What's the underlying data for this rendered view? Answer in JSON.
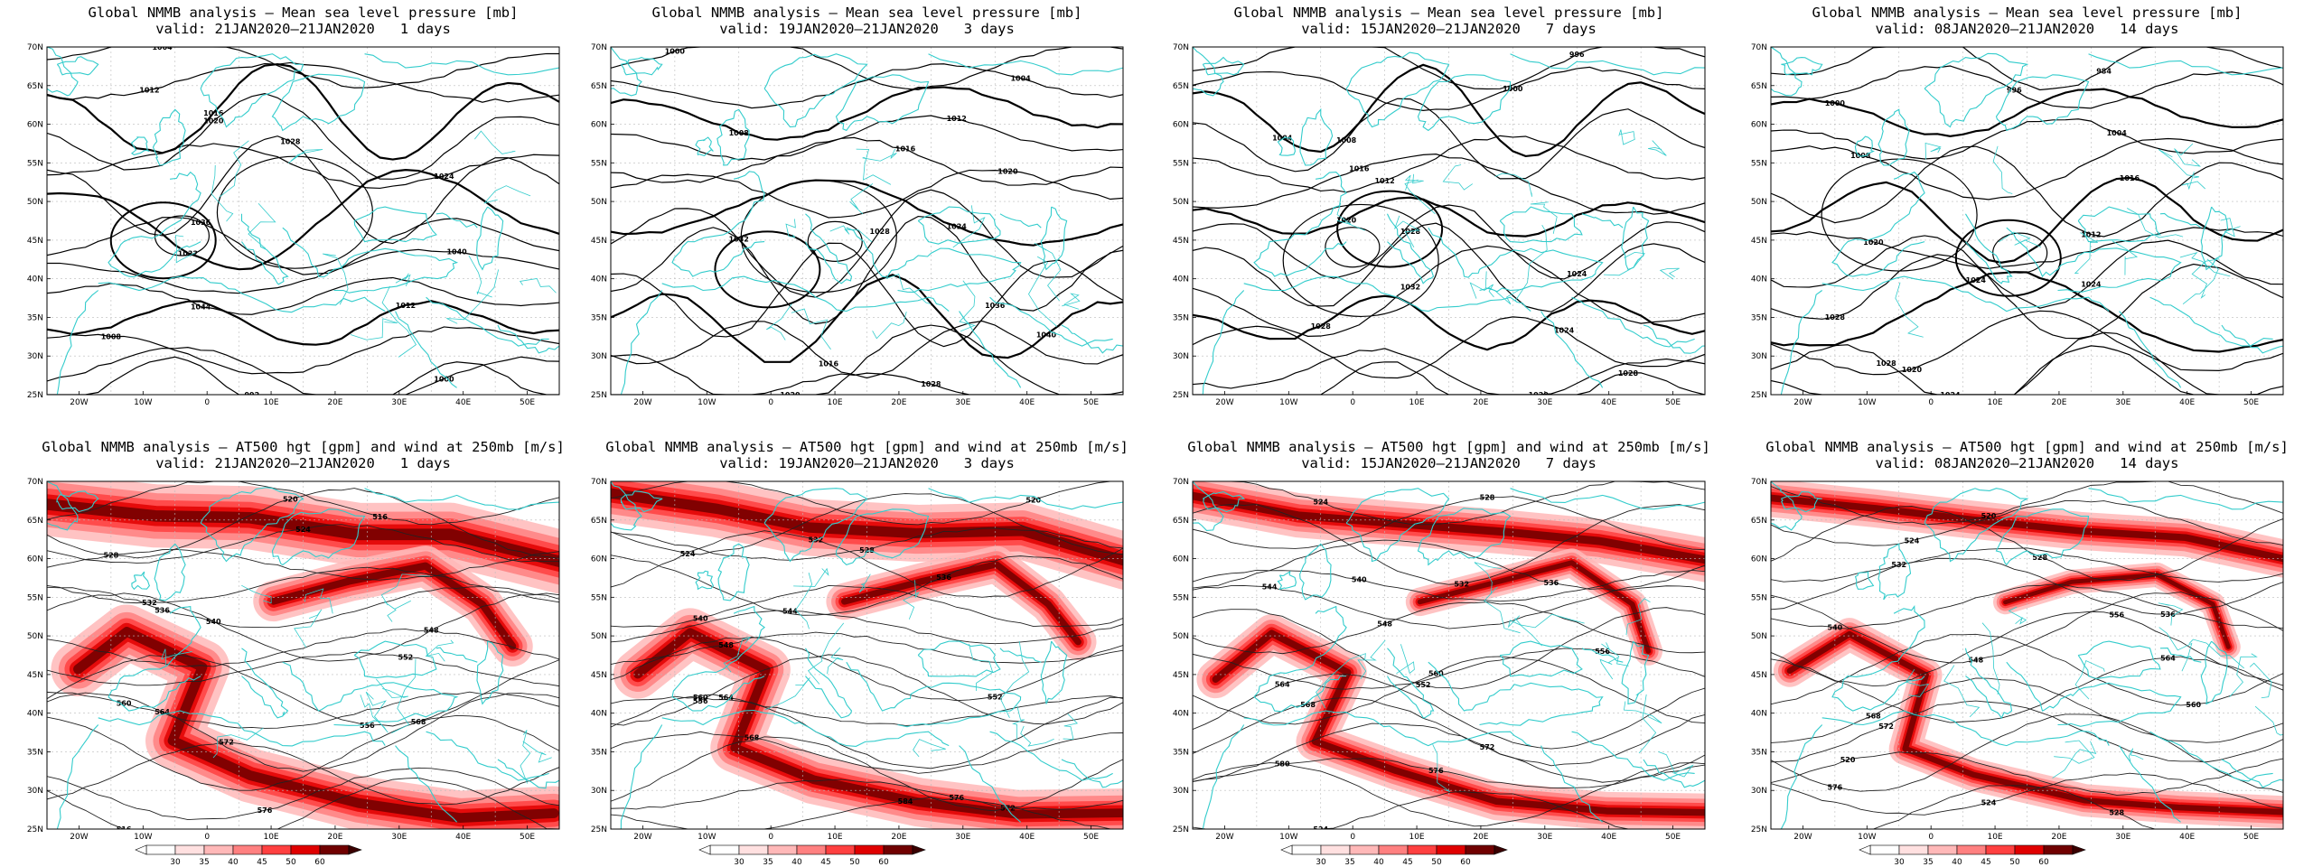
{
  "figure": {
    "rows": [
      {
        "kind": "mslp",
        "panels": [
          {
            "title": "Global NMMB analysis – Mean sea level pressure [mb]",
            "valid": "valid: 21JAN2020–21JAN2020   1 days",
            "contour_labels": [
              "1004",
              "1012",
              "1016",
              "1020",
              "1024",
              "1028",
              "1032",
              "1036",
              "1040",
              "1044",
              "1012",
              "1008",
              "1000",
              "992"
            ]
          },
          {
            "title": "Global NMMB analysis – Mean sea level pressure [mb]",
            "valid": "valid: 19JAN2020–21JAN2020   3 days",
            "contour_labels": [
              "1000",
              "1004",
              "1008",
              "1012",
              "1016",
              "1020",
              "1024",
              "1028",
              "1032",
              "1036",
              "1040",
              "1016",
              "1020",
              "1028"
            ]
          },
          {
            "title": "Global NMMB analysis – Mean sea level pressure [mb]",
            "valid": "valid: 15JAN2020–21JAN2020   7 days",
            "contour_labels": [
              "996",
              "1000",
              "1004",
              "1008",
              "1012",
              "1016",
              "1020",
              "1024",
              "1028",
              "1032",
              "1028",
              "1024",
              "1020",
              "1028"
            ]
          },
          {
            "title": "Global NMMB analysis – Mean sea level pressure [mb]",
            "valid": "valid: 08JAN2020–21JAN2020   14 days",
            "contour_labels": [
              "984",
              "996",
              "1000",
              "1004",
              "1008",
              "1012",
              "1016",
              "1020",
              "1024",
              "1028",
              "1024",
              "1020",
              "1028",
              "1024"
            ]
          }
        ]
      },
      {
        "kind": "at500",
        "panels": [
          {
            "title": "Global NMMB analysis – AT500 hgt [gpm] and wind at 250mb [m/s]",
            "valid": "valid: 21JAN2020–21JAN2020   1 days",
            "contour_labels": [
              "516",
              "520",
              "524",
              "528",
              "532",
              "536",
              "540",
              "548",
              "552",
              "556",
              "560",
              "564",
              "568",
              "572",
              "576"
            ]
          },
          {
            "title": "Global NMMB analysis – AT500 hgt [gpm] and wind at 250mb [m/s]",
            "valid": "valid: 19JAN2020–21JAN2020   3 days",
            "contour_labels": [
              "520",
              "524",
              "528",
              "532",
              "536",
              "540",
              "544",
              "548",
              "552",
              "556",
              "560",
              "564",
              "568",
              "572",
              "576",
              "584"
            ]
          },
          {
            "title": "Global NMMB analysis – AT500 hgt [gpm] and wind at 250mb [m/s]",
            "valid": "valid: 15JAN2020–21JAN2020   7 days",
            "contour_labels": [
              "524",
              "528",
              "532",
              "536",
              "540",
              "544",
              "548",
              "552",
              "556",
              "560",
              "564",
              "568",
              "572",
              "576",
              "580"
            ]
          },
          {
            "title": "Global NMMB analysis – AT500 hgt [gpm] and wind at 250mb [m/s]",
            "valid": "valid: 08JAN2020–21JAN2020   14 days",
            "contour_labels": [
              "520",
              "524",
              "528",
              "532",
              "536",
              "540",
              "548",
              "556",
              "560",
              "564",
              "568",
              "572",
              "576"
            ]
          }
        ]
      }
    ],
    "axes": {
      "lon_ticks": [
        "20W",
        "10W",
        "0",
        "10E",
        "20E",
        "30E",
        "40E",
        "50E"
      ],
      "lat_ticks": [
        "70N",
        "65N",
        "60N",
        "55N",
        "50N",
        "45N",
        "40N",
        "35N",
        "30N",
        "25N"
      ]
    },
    "colorbar": {
      "ticks": [
        "30",
        "35",
        "40",
        "45",
        "50",
        "60"
      ],
      "colors": [
        "#ffffff",
        "#ffe0e0",
        "#ffb8b8",
        "#ff8080",
        "#ff4040",
        "#e00000",
        "#700000"
      ]
    },
    "colors": {
      "coast": "#33cccc",
      "contour": "#000000",
      "grid": "#bbbbbb"
    }
  }
}
